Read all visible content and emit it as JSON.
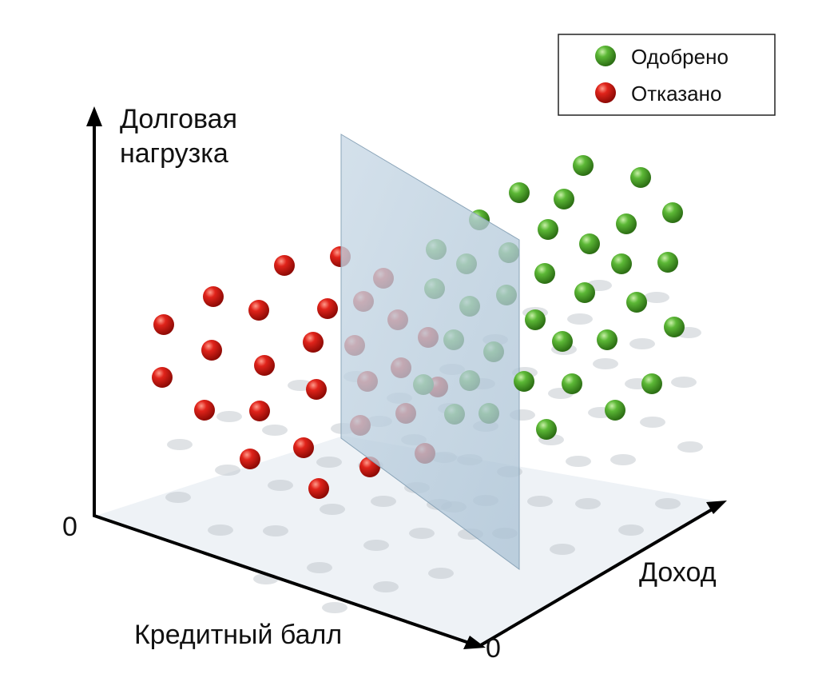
{
  "axes": {
    "y_label_line1": "Долговая",
    "y_label_line2": "нагрузка",
    "x_label": "Кредитный балл",
    "z_label": "Доход",
    "origin_left": "0",
    "origin_bottom": "0"
  },
  "legend": {
    "items": [
      {
        "label": "Одобрено"
      },
      {
        "label": "Отказано"
      }
    ]
  }
}
